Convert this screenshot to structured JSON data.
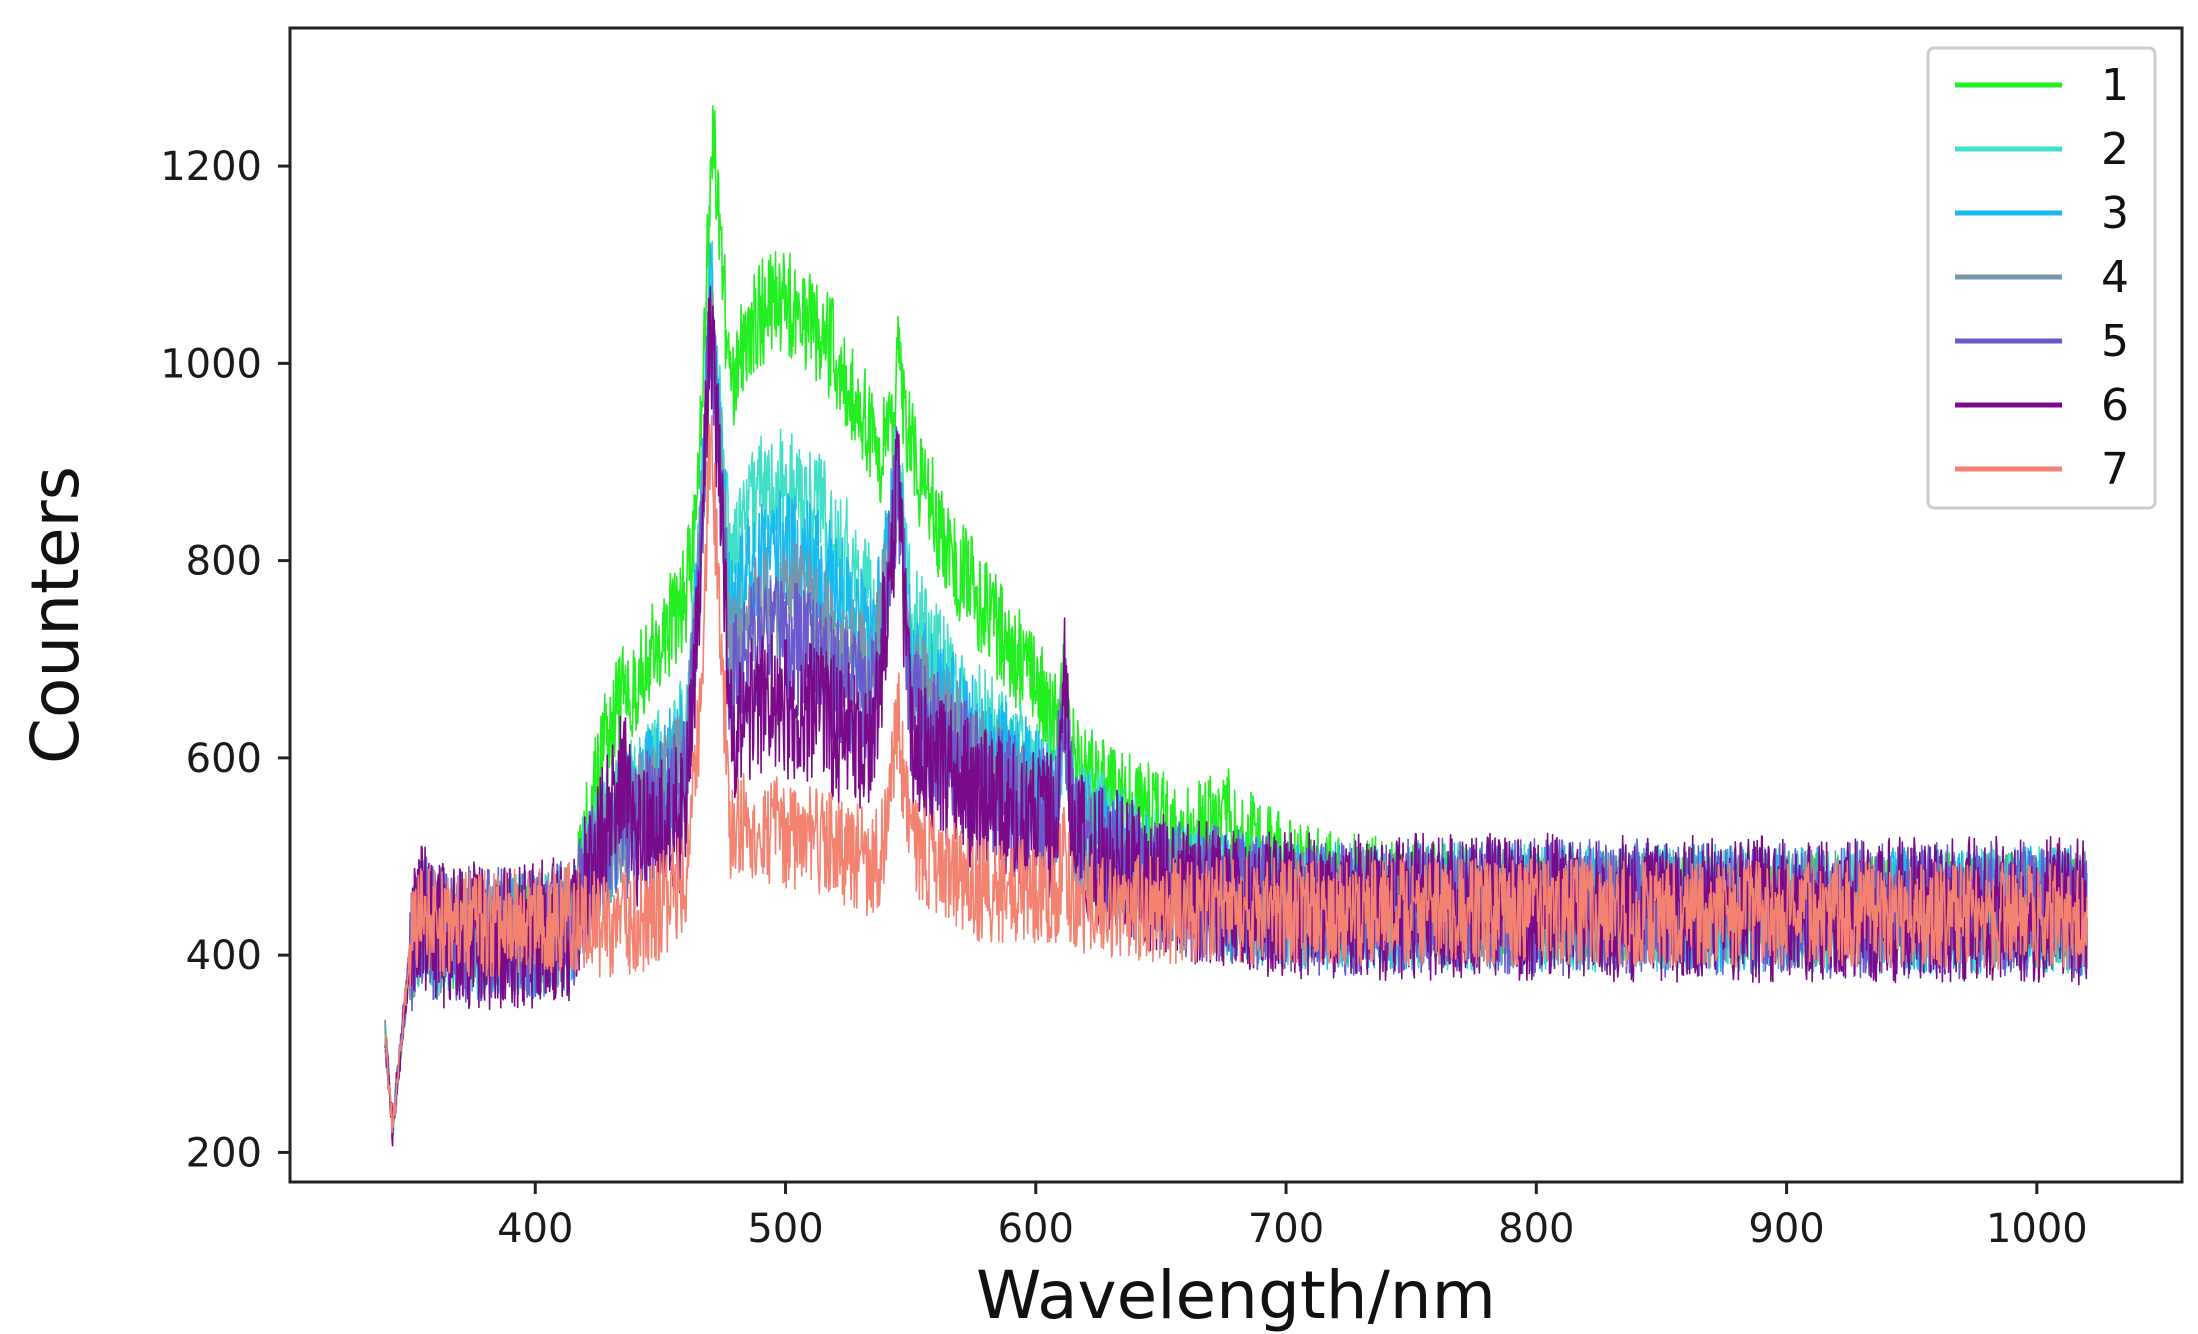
{
  "chart_data": {
    "type": "line",
    "title": "",
    "xlabel": "Wavelength/nm",
    "ylabel": "Counters",
    "xlim": [
      302,
      1058
    ],
    "ylim": [
      170,
      1340
    ],
    "x_ticks": [
      400,
      500,
      600,
      700,
      800,
      900,
      1000
    ],
    "y_ticks": [
      200,
      400,
      600,
      800,
      1000,
      1200
    ],
    "x_tick_labels": [
      "400",
      "500",
      "600",
      "700",
      "800",
      "900",
      "1000"
    ],
    "y_tick_labels": [
      "200",
      "400",
      "600",
      "800",
      "1000",
      "1200"
    ],
    "grid": false,
    "legend": {
      "position": "top-right",
      "entries": [
        "1",
        "2",
        "3",
        "4",
        "5",
        "6",
        "7"
      ]
    },
    "x_range": [
      340,
      1020
    ],
    "series": [
      {
        "name": "1",
        "color": "#22ee22",
        "noise": 55,
        "points": [
          [
            340,
            320
          ],
          [
            343,
            225
          ],
          [
            350,
            400
          ],
          [
            355,
            440
          ],
          [
            360,
            420
          ],
          [
            380,
            415
          ],
          [
            400,
            420
          ],
          [
            415,
            430
          ],
          [
            420,
            520
          ],
          [
            430,
            640
          ],
          [
            440,
            680
          ],
          [
            450,
            720
          ],
          [
            460,
            760
          ],
          [
            465,
            860
          ],
          [
            468,
            1060
          ],
          [
            471,
            1250
          ],
          [
            474,
            1130
          ],
          [
            478,
            960
          ],
          [
            485,
            1040
          ],
          [
            495,
            1060
          ],
          [
            500,
            1060
          ],
          [
            510,
            1040
          ],
          [
            520,
            1010
          ],
          [
            530,
            960
          ],
          [
            538,
            900
          ],
          [
            543,
            950
          ],
          [
            545,
            1000
          ],
          [
            548,
            930
          ],
          [
            555,
            870
          ],
          [
            570,
            790
          ],
          [
            585,
            730
          ],
          [
            600,
            670
          ],
          [
            608,
            630
          ],
          [
            611,
            660
          ],
          [
            614,
            600
          ],
          [
            630,
            560
          ],
          [
            660,
            520
          ],
          [
            675,
            540
          ],
          [
            690,
            500
          ],
          [
            720,
            470
          ],
          [
            800,
            450
          ],
          [
            1020,
            450
          ]
        ]
      },
      {
        "name": "2",
        "color": "#40e0c8",
        "noise": 65,
        "points": [
          [
            340,
            320
          ],
          [
            343,
            225
          ],
          [
            350,
            400
          ],
          [
            355,
            440
          ],
          [
            360,
            420
          ],
          [
            400,
            420
          ],
          [
            415,
            430
          ],
          [
            420,
            490
          ],
          [
            440,
            560
          ],
          [
            460,
            620
          ],
          [
            466,
            820
          ],
          [
            470,
            1090
          ],
          [
            474,
            940
          ],
          [
            478,
            780
          ],
          [
            490,
            870
          ],
          [
            500,
            870
          ],
          [
            515,
            840
          ],
          [
            530,
            780
          ],
          [
            538,
            730
          ],
          [
            545,
            910
          ],
          [
            550,
            740
          ],
          [
            570,
            650
          ],
          [
            590,
            600
          ],
          [
            608,
            560
          ],
          [
            611,
            650
          ],
          [
            615,
            540
          ],
          [
            650,
            480
          ],
          [
            700,
            450
          ],
          [
            1020,
            445
          ]
        ]
      },
      {
        "name": "3",
        "color": "#1ab8f0",
        "noise": 65,
        "points": [
          [
            340,
            320
          ],
          [
            343,
            225
          ],
          [
            350,
            400
          ],
          [
            355,
            440
          ],
          [
            360,
            420
          ],
          [
            400,
            420
          ],
          [
            415,
            430
          ],
          [
            420,
            485
          ],
          [
            440,
            550
          ],
          [
            460,
            610
          ],
          [
            466,
            810
          ],
          [
            470,
            1070
          ],
          [
            474,
            920
          ],
          [
            478,
            740
          ],
          [
            490,
            810
          ],
          [
            505,
            810
          ],
          [
            520,
            770
          ],
          [
            535,
            710
          ],
          [
            545,
            900
          ],
          [
            550,
            700
          ],
          [
            575,
            620
          ],
          [
            600,
            570
          ],
          [
            608,
            550
          ],
          [
            611,
            660
          ],
          [
            615,
            530
          ],
          [
            650,
            470
          ],
          [
            700,
            450
          ],
          [
            1020,
            445
          ]
        ]
      },
      {
        "name": "4",
        "color": "#7a94a8",
        "noise": 60,
        "points": [
          [
            340,
            320
          ],
          [
            343,
            225
          ],
          [
            350,
            400
          ],
          [
            355,
            440
          ],
          [
            360,
            420
          ],
          [
            400,
            420
          ],
          [
            415,
            430
          ],
          [
            420,
            480
          ],
          [
            440,
            540
          ],
          [
            460,
            590
          ],
          [
            466,
            800
          ],
          [
            470,
            1050
          ],
          [
            474,
            900
          ],
          [
            478,
            700
          ],
          [
            490,
            760
          ],
          [
            505,
            760
          ],
          [
            520,
            720
          ],
          [
            535,
            680
          ],
          [
            545,
            880
          ],
          [
            550,
            680
          ],
          [
            575,
            600
          ],
          [
            600,
            555
          ],
          [
            608,
            545
          ],
          [
            611,
            660
          ],
          [
            615,
            525
          ],
          [
            650,
            470
          ],
          [
            700,
            450
          ],
          [
            1020,
            445
          ]
        ]
      },
      {
        "name": "5",
        "color": "#6a5acd",
        "noise": 70,
        "points": [
          [
            340,
            320
          ],
          [
            343,
            225
          ],
          [
            350,
            400
          ],
          [
            355,
            440
          ],
          [
            360,
            420
          ],
          [
            400,
            420
          ],
          [
            415,
            430
          ],
          [
            420,
            475
          ],
          [
            440,
            530
          ],
          [
            460,
            570
          ],
          [
            466,
            790
          ],
          [
            470,
            1060
          ],
          [
            474,
            880
          ],
          [
            478,
            670
          ],
          [
            490,
            720
          ],
          [
            505,
            710
          ],
          [
            520,
            680
          ],
          [
            535,
            650
          ],
          [
            545,
            890
          ],
          [
            550,
            650
          ],
          [
            575,
            580
          ],
          [
            600,
            545
          ],
          [
            608,
            540
          ],
          [
            611,
            680
          ],
          [
            615,
            520
          ],
          [
            650,
            470
          ],
          [
            700,
            450
          ],
          [
            1020,
            445
          ]
        ]
      },
      {
        "name": "6",
        "color": "#7a0a8a",
        "noise": 75,
        "points": [
          [
            340,
            320
          ],
          [
            343,
            225
          ],
          [
            350,
            400
          ],
          [
            355,
            440
          ],
          [
            360,
            420
          ],
          [
            400,
            420
          ],
          [
            415,
            430
          ],
          [
            420,
            470
          ],
          [
            435,
            580
          ],
          [
            440,
            520
          ],
          [
            460,
            540
          ],
          [
            466,
            780
          ],
          [
            470,
            1040
          ],
          [
            474,
            860
          ],
          [
            478,
            630
          ],
          [
            490,
            660
          ],
          [
            505,
            650
          ],
          [
            520,
            630
          ],
          [
            535,
            610
          ],
          [
            545,
            880
          ],
          [
            550,
            620
          ],
          [
            575,
            560
          ],
          [
            600,
            530
          ],
          [
            608,
            530
          ],
          [
            611,
            690
          ],
          [
            615,
            515
          ],
          [
            650,
            470
          ],
          [
            700,
            450
          ],
          [
            1020,
            445
          ]
        ]
      },
      {
        "name": "7",
        "color": "#f48270",
        "noise": 55,
        "points": [
          [
            340,
            320
          ],
          [
            343,
            225
          ],
          [
            350,
            405
          ],
          [
            355,
            440
          ],
          [
            360,
            430
          ],
          [
            400,
            435
          ],
          [
            415,
            440
          ],
          [
            420,
            430
          ],
          [
            440,
            430
          ],
          [
            460,
            470
          ],
          [
            466,
            640
          ],
          [
            470,
            940
          ],
          [
            474,
            720
          ],
          [
            478,
            530
          ],
          [
            490,
            530
          ],
          [
            505,
            520
          ],
          [
            520,
            510
          ],
          [
            535,
            490
          ],
          [
            540,
            520
          ],
          [
            545,
            640
          ],
          [
            550,
            510
          ],
          [
            575,
            470
          ],
          [
            600,
            460
          ],
          [
            608,
            455
          ],
          [
            611,
            500
          ],
          [
            615,
            450
          ],
          [
            650,
            445
          ],
          [
            1020,
            440
          ]
        ]
      }
    ]
  }
}
